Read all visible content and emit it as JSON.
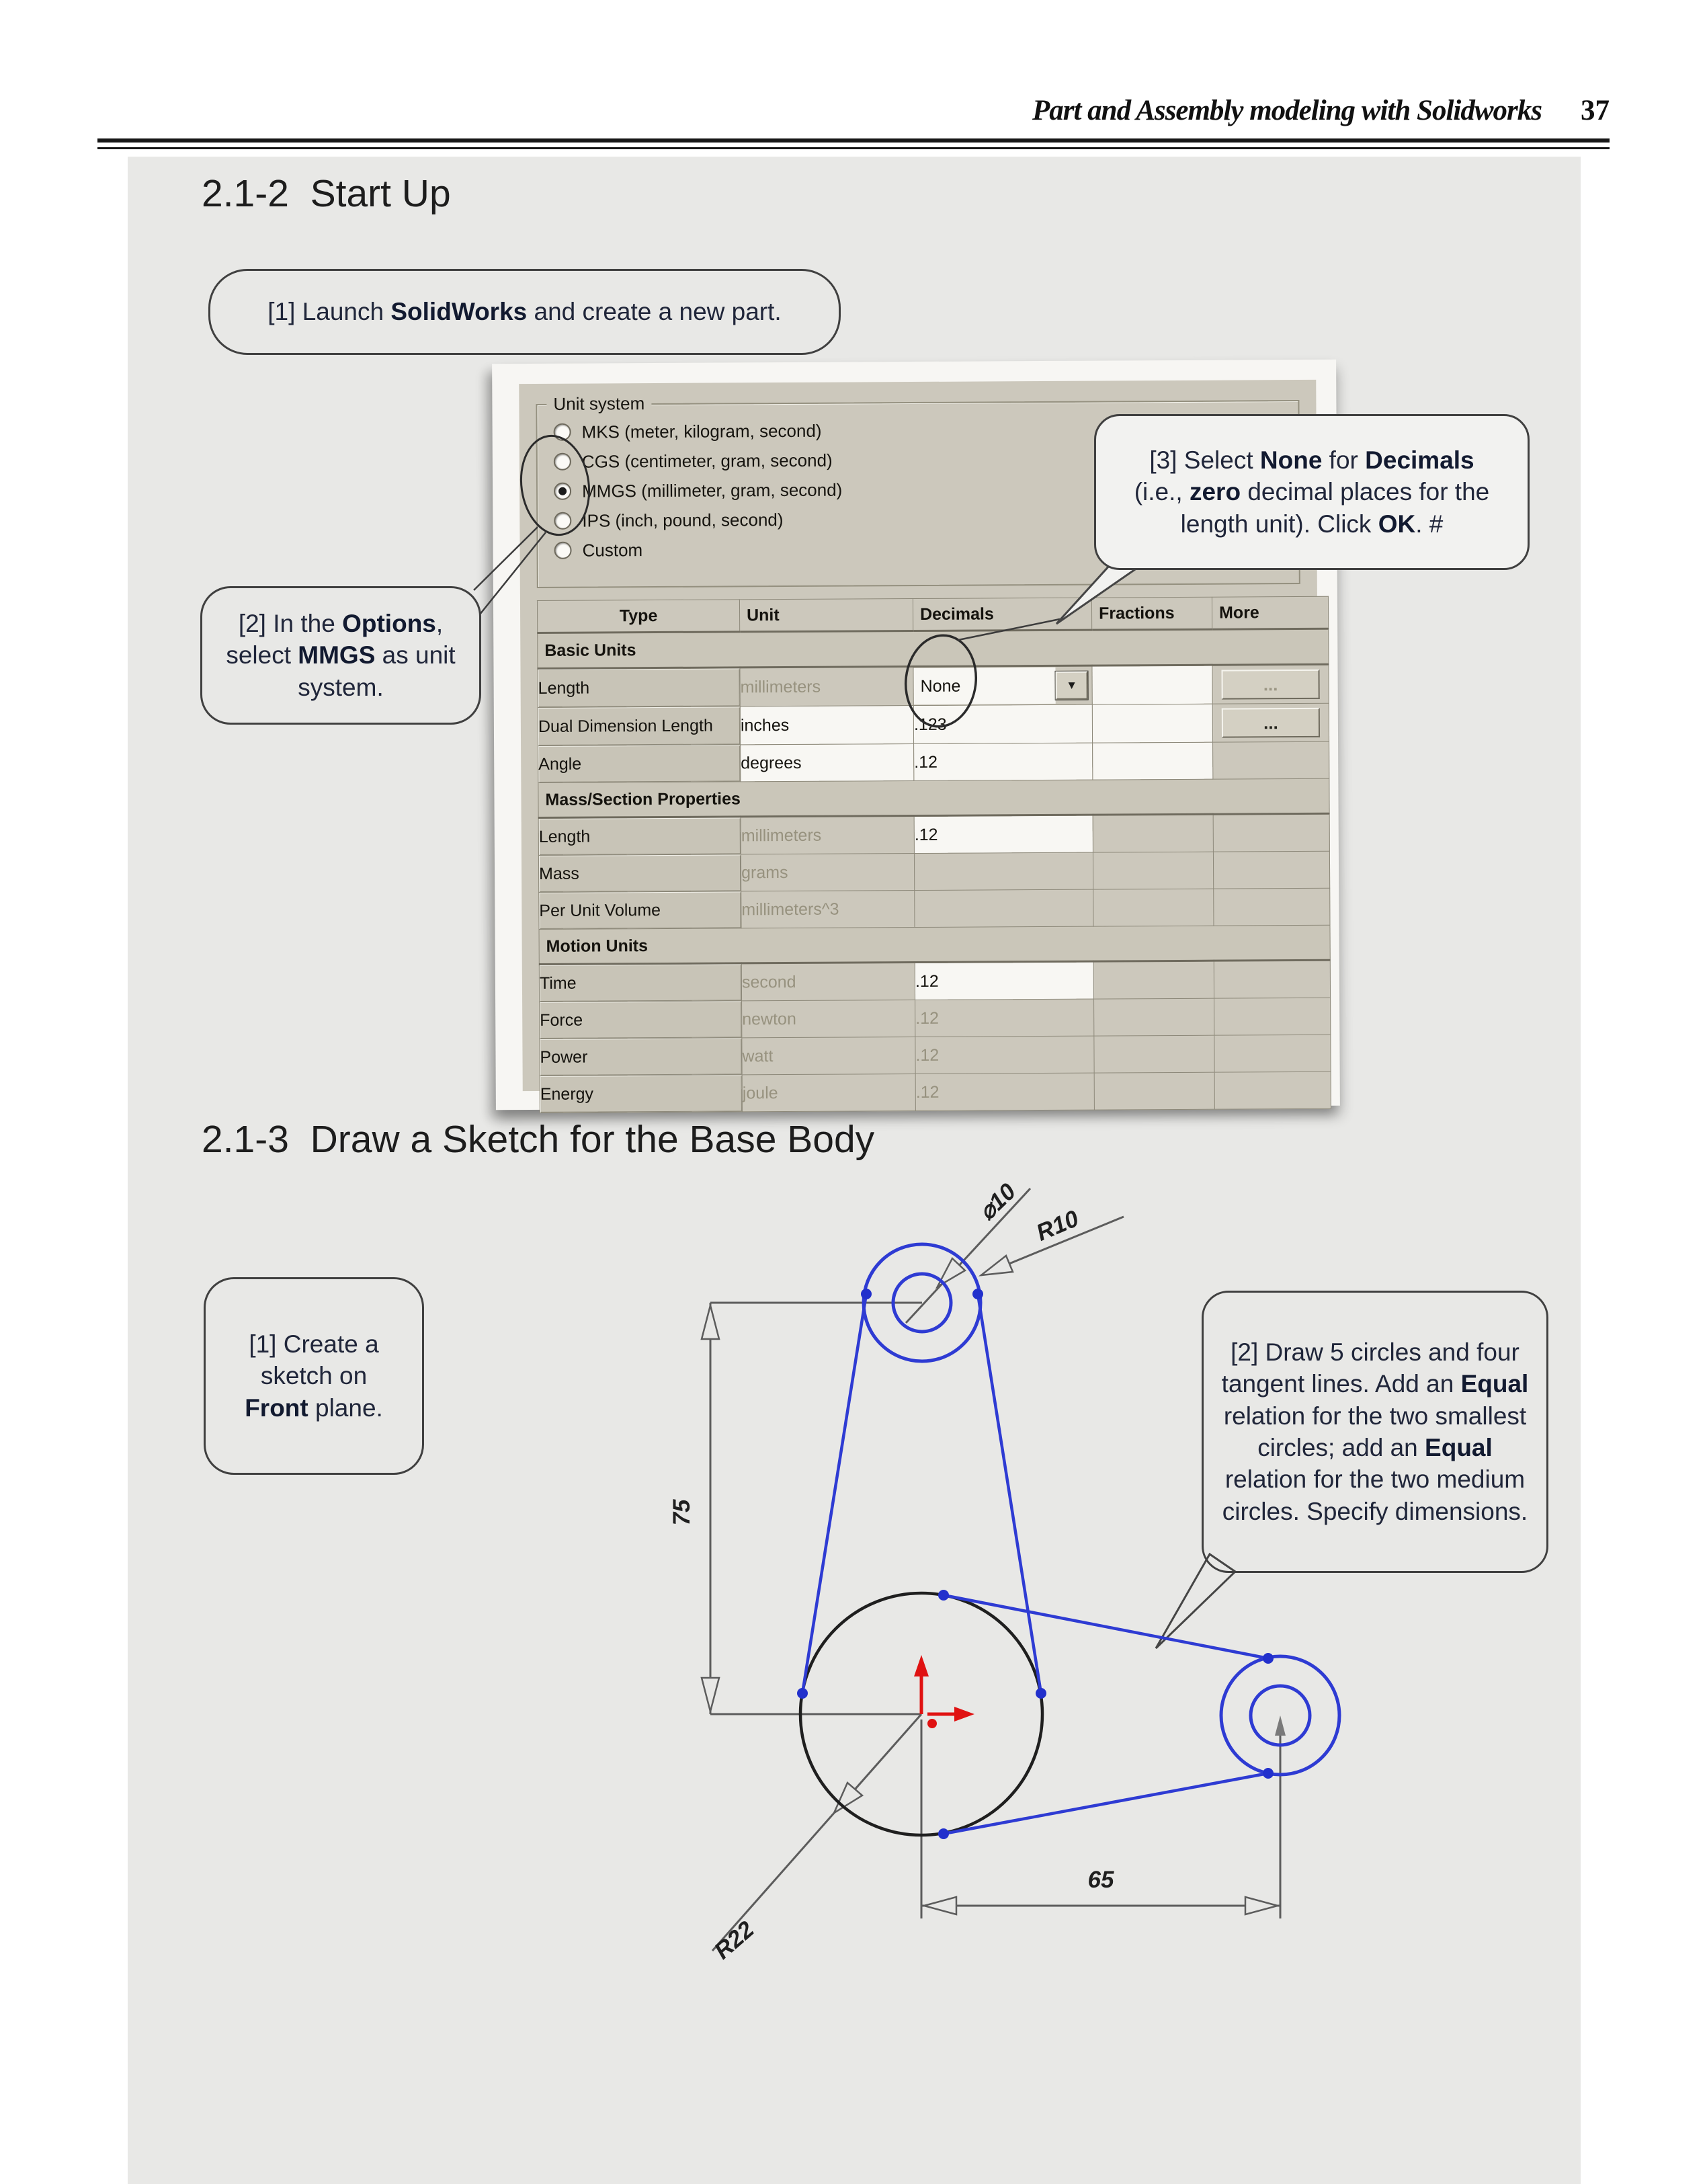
{
  "header": {
    "title": "Part and Assembly modeling with Solidworks",
    "page_number": "37"
  },
  "sections": {
    "startup": "2.1-2  Start Up",
    "sketch": "2.1-3  Draw a Sketch for the Base Body"
  },
  "callouts": {
    "launch": [
      [
        {
          "t": "[1] Launch "
        },
        {
          "t": "SolidWorks",
          "b": true
        },
        {
          "t": " and create a new part."
        }
      ]
    ],
    "options": [
      [
        {
          "t": "[2] In the "
        },
        {
          "t": "Options",
          "b": true
        },
        {
          "t": ","
        }
      ],
      [
        {
          "t": "select "
        },
        {
          "t": "MMGS",
          "b": true
        },
        {
          "t": " as unit"
        }
      ],
      [
        {
          "t": "system."
        }
      ]
    ],
    "none": [
      [
        {
          "t": "[3] Select "
        },
        {
          "t": "None",
          "b": true
        },
        {
          "t": " for "
        },
        {
          "t": "Decimals",
          "b": true
        }
      ],
      [
        {
          "t": "(i.e., "
        },
        {
          "t": "zero",
          "b": true
        },
        {
          "t": " decimal places for the"
        }
      ],
      [
        {
          "t": "length unit).  Click "
        },
        {
          "t": "OK",
          "b": true
        },
        {
          "t": ". #"
        }
      ]
    ],
    "front": [
      [
        {
          "t": "[1] Create a"
        }
      ],
      [
        {
          "t": "sketch on"
        }
      ],
      [
        {
          "t": "Front",
          "b": true
        },
        {
          "t": " plane."
        }
      ]
    ],
    "draw": [
      [
        {
          "t": "[2] Draw 5 circles and four"
        }
      ],
      [
        {
          "t": "tangent lines.  Add an "
        },
        {
          "t": "Equal",
          "b": true
        }
      ],
      [
        {
          "t": "relation for the two smallest"
        }
      ],
      [
        {
          "t": "circles;  add an "
        },
        {
          "t": "Equal",
          "b": true
        }
      ],
      [
        {
          "t": "relation for the two medium"
        }
      ],
      [
        {
          "t": "circles.  Specify dimensions."
        }
      ]
    ]
  },
  "dialog": {
    "unit_system": {
      "label": "Unit system",
      "options": [
        {
          "label": "MKS  (meter, kilogram, second)",
          "selected": false
        },
        {
          "label": "CGS  (centimeter, gram, second)",
          "selected": false
        },
        {
          "label": "MMGS (millimeter, gram, second)",
          "selected": true
        },
        {
          "label": "IPS  (inch, pound, second)",
          "selected": false
        },
        {
          "label": "Custom",
          "selected": false
        }
      ]
    },
    "table": {
      "headers": [
        "Type",
        "Unit",
        "Decimals",
        "Fractions",
        "More"
      ],
      "rows": [
        {
          "section": "Basic Units"
        },
        {
          "type": "Length",
          "unit": "millimeters",
          "unit_gray": true,
          "decimals": "None",
          "dropdown": true,
          "fractions_white": true,
          "more": "...",
          "more_gray": true
        },
        {
          "type": "Dual Dimension Length",
          "unit": "inches",
          "unit_white": true,
          "decimals": ".123",
          "fractions_white": true,
          "more": "..."
        },
        {
          "type": "Angle",
          "unit": "degrees",
          "unit_white": true,
          "decimals": ".12",
          "fractions_white": true
        },
        {
          "section": "Mass/Section Properties"
        },
        {
          "type": "Length",
          "unit": "millimeters",
          "unit_gray": true,
          "decimals": ".12"
        },
        {
          "type": "Mass",
          "unit": "grams",
          "unit_gray": true
        },
        {
          "type": "Per Unit Volume",
          "unit": "millimeters^3",
          "unit_gray": true
        },
        {
          "section": "Motion Units"
        },
        {
          "type": "Time",
          "unit": "second",
          "unit_gray": true,
          "decimals": ".12"
        },
        {
          "type": "Force",
          "unit": "newton",
          "unit_gray": true,
          "decimals": ".12",
          "dec_gray": true
        },
        {
          "type": "Power",
          "unit": "watt",
          "unit_gray": true,
          "decimals": ".12",
          "dec_gray": true
        },
        {
          "type": "Energy",
          "unit": "joule",
          "unit_gray": true,
          "decimals": ".12",
          "dec_gray": true
        }
      ]
    }
  },
  "icons": {
    "dropdown_arrow": "▼"
  },
  "sketch": {
    "dims": {
      "diameter_small": "⌀10",
      "radius_medium": "R10",
      "height": "75",
      "radius_large": "R22",
      "distance": "65"
    },
    "colors": {
      "sketch_blue": "#2e3bd3",
      "circle_black": "#1f1f1f",
      "dim_gray": "#5c5c5c",
      "origin_red": "#e01212"
    }
  }
}
